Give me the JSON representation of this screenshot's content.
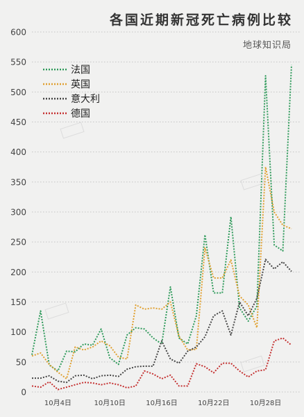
{
  "title": "各国近期新冠死亡病例比较",
  "subtitle": "地球知识局",
  "chart_data": {
    "type": "line",
    "title": "各国近期新冠死亡病例比较",
    "xlabel": "",
    "ylabel": "",
    "ylim": [
      0,
      600
    ],
    "yticks": [
      0,
      50,
      100,
      150,
      200,
      250,
      300,
      350,
      400,
      450,
      500,
      550,
      600
    ],
    "x_start": "10月1日",
    "xticks": [
      {
        "index": 3,
        "label": "10月4日"
      },
      {
        "index": 9,
        "label": "10月10日"
      },
      {
        "index": 15,
        "label": "10月16日"
      },
      {
        "index": 21,
        "label": "10月22日"
      },
      {
        "index": 27,
        "label": "10月28日"
      }
    ],
    "grid": "horizontal",
    "legend": "top-left",
    "series": [
      {
        "name": "法国",
        "color": "#2e9a5a",
        "values": [
          62,
          135,
          45,
          35,
          68,
          67,
          80,
          78,
          105,
          57,
          46,
          95,
          107,
          105,
          90,
          80,
          175,
          90,
          80,
          127,
          262,
          165,
          165,
          292,
          140,
          118,
          143,
          527,
          245,
          235,
          545
        ]
      },
      {
        "name": "英国",
        "color": "#e0a030",
        "values": [
          60,
          65,
          46,
          33,
          22,
          75,
          70,
          75,
          85,
          77,
          58,
          55,
          145,
          138,
          140,
          138,
          150,
          93,
          70,
          71,
          240,
          190,
          190,
          220,
          160,
          145,
          107,
          375,
          300,
          278,
          272
        ]
      },
      {
        "name": "意大利",
        "color": "#444444",
        "values": [
          23,
          23,
          27,
          18,
          16,
          27,
          28,
          22,
          27,
          28,
          26,
          38,
          42,
          43,
          43,
          85,
          55,
          48,
          68,
          75,
          92,
          127,
          135,
          95,
          150,
          127,
          156,
          221,
          205,
          217,
          201
        ]
      },
      {
        "name": "德国",
        "color": "#c43030",
        "values": [
          10,
          8,
          17,
          4,
          8,
          12,
          16,
          15,
          12,
          15,
          12,
          7,
          10,
          35,
          30,
          22,
          28,
          10,
          10,
          47,
          42,
          32,
          48,
          48,
          35,
          25,
          35,
          37,
          85,
          90,
          78
        ]
      }
    ]
  }
}
